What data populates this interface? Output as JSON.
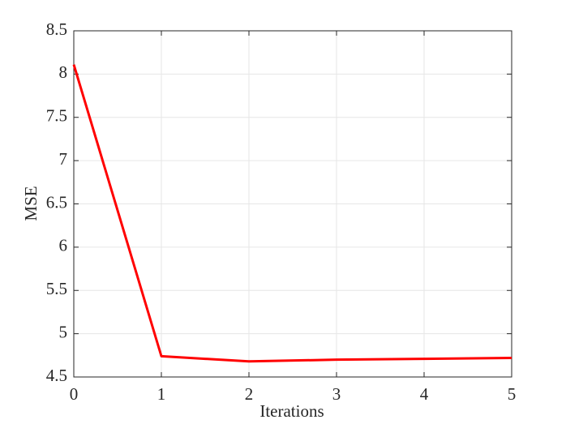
{
  "chart_data": {
    "type": "line",
    "x": [
      0,
      1,
      2,
      3,
      4,
      5
    ],
    "series": [
      {
        "name": "MSE",
        "color": "#ff0000",
        "values": [
          8.11,
          4.74,
          4.68,
          4.7,
          4.71,
          4.72
        ]
      }
    ],
    "xlabel": "Iterations",
    "ylabel": "MSE",
    "xlim": [
      0,
      5
    ],
    "ylim": [
      4.5,
      8.5
    ],
    "xticks": [
      0,
      1,
      2,
      3,
      4,
      5
    ],
    "yticks": [
      4.5,
      5,
      5.5,
      6,
      6.5,
      7,
      7.5,
      8,
      8.5
    ],
    "grid": true
  }
}
